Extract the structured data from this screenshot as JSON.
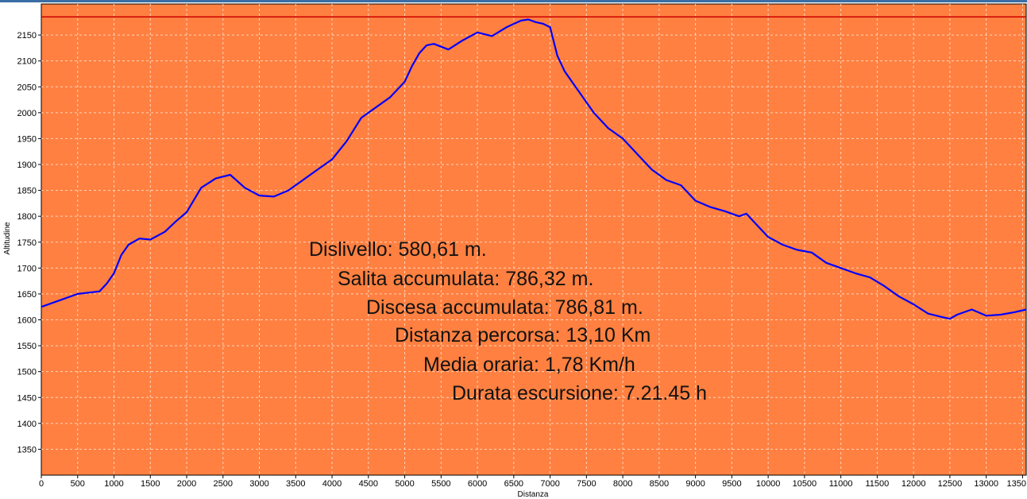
{
  "chart_data": {
    "type": "line",
    "xlabel": "Distanza",
    "ylabel": "Altitudine",
    "xlim": [
      0,
      13550
    ],
    "ylim": [
      1300,
      2210
    ],
    "x_ticks": [
      "0",
      "500",
      "1000",
      "1500",
      "2000",
      "2500",
      "3000",
      "3500",
      "4000",
      "4500",
      "5000",
      "5500",
      "6000",
      "6500",
      "7000",
      "7500",
      "8000",
      "8500",
      "9000",
      "9500",
      "10000",
      "10500",
      "11000",
      "11500",
      "12000",
      "12500",
      "13000",
      "1350"
    ],
    "y_ticks": [
      "1350",
      "1400",
      "1450",
      "1500",
      "1550",
      "1600",
      "1650",
      "1700",
      "1750",
      "1800",
      "1850",
      "1900",
      "1950",
      "2000",
      "2050",
      "2100",
      "2150"
    ],
    "grid": true,
    "reference_line": 2185,
    "series": [
      {
        "x": [
          0,
          200,
          500,
          800,
          900,
          1000,
          1100,
          1200,
          1350,
          1500,
          1700,
          1850,
          2000,
          2200,
          2400,
          2600,
          2800,
          3000,
          3200,
          3400,
          3600,
          3800,
          4000,
          4200,
          4400,
          4600,
          4800,
          5000,
          5100,
          5200,
          5300,
          5400,
          5600,
          5800,
          6000,
          6200,
          6400,
          6600,
          6700,
          6800,
          6900,
          7000,
          7100,
          7200,
          7400,
          7600,
          7800,
          8000,
          8200,
          8400,
          8600,
          8800,
          9000,
          9200,
          9400,
          9600,
          9700,
          9800,
          10000,
          10200,
          10400,
          10600,
          10800,
          11000,
          11200,
          11400,
          11600,
          11800,
          12000,
          12200,
          12400,
          12500,
          12600,
          12800,
          13000,
          13200,
          13400,
          13550
        ],
        "values": [
          1625,
          1635,
          1650,
          1655,
          1670,
          1690,
          1725,
          1745,
          1757,
          1755,
          1770,
          1790,
          1808,
          1855,
          1873,
          1880,
          1855,
          1840,
          1838,
          1850,
          1870,
          1890,
          1910,
          1945,
          1990,
          2010,
          2030,
          2060,
          2090,
          2115,
          2130,
          2133,
          2122,
          2140,
          2155,
          2148,
          2165,
          2178,
          2180,
          2175,
          2172,
          2165,
          2110,
          2080,
          2040,
          2000,
          1970,
          1950,
          1920,
          1890,
          1870,
          1860,
          1830,
          1818,
          1810,
          1800,
          1805,
          1790,
          1760,
          1745,
          1735,
          1730,
          1710,
          1700,
          1690,
          1682,
          1665,
          1645,
          1630,
          1612,
          1605,
          1602,
          1610,
          1620,
          1608,
          1610,
          1615,
          1620
        ]
      }
    ],
    "colors": {
      "plot_background": "#ff8040",
      "series_line": "#0000ff",
      "reference_line": "#cc0000",
      "grid": "#ffd4bf"
    }
  },
  "stats": [
    "Dislivello: 580,61 m.",
    "Salita accumulata: 786,32 m.",
    "Discesa accumulata: 786,81 m.",
    "Distanza percorsa: 13,10 Km",
    "Media oraria: 1,78 Km/h",
    "Durata escursione: 7.21.45 h"
  ]
}
